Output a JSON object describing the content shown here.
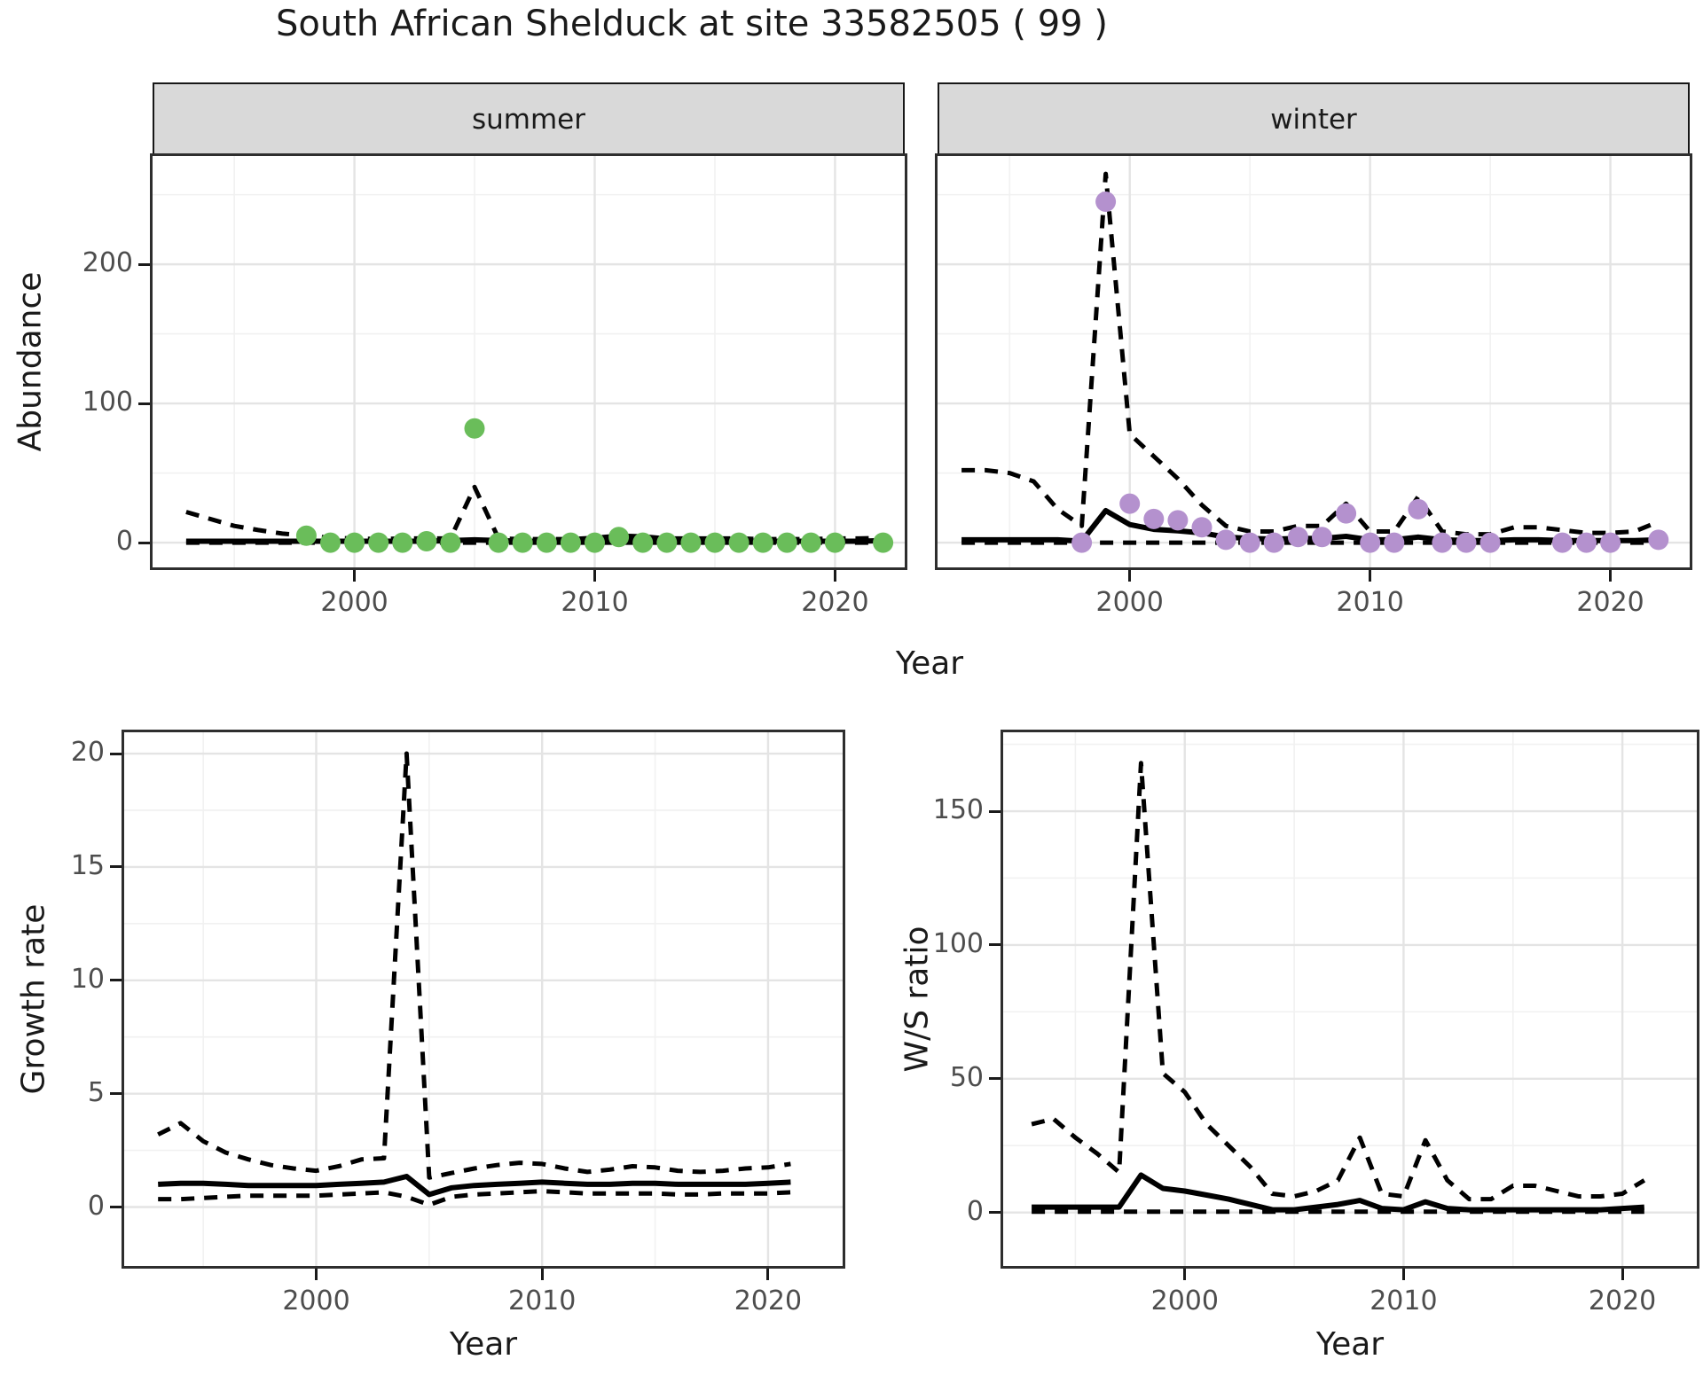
{
  "title": "South African Shelduck at site 33582505 ( 99 )",
  "axes": {
    "top": {
      "ylabel": "Abundance",
      "xlabel": "Year",
      "facets": [
        "summer",
        "winter"
      ]
    },
    "bottom_left": {
      "ylabel": "Growth rate",
      "xlabel": "Year"
    },
    "bottom_right": {
      "ylabel": "W/S ratio",
      "xlabel": "Year"
    }
  },
  "colors": {
    "point_summer": "#6abd5a",
    "point_winter": "#b491ce",
    "line": "#000000",
    "strip_bg": "#d9d9d9",
    "grid_major": "#e4e4e4",
    "grid_minor": "#f1f1f1",
    "axis_text": "#4d4d4d",
    "text": "#1a1a1a",
    "panel_border": "#2e2e2e"
  },
  "chart_data": [
    {
      "id": "abundance-summer",
      "type": "line",
      "facet": "summer",
      "ylabel": "Abundance",
      "xlabel": "Year",
      "xlim": [
        1991.6,
        2022.9
      ],
      "ylim": [
        -17.8,
        277.8
      ],
      "xticks": [
        2000,
        2010,
        2020
      ],
      "xminor": [
        1995,
        2005,
        2015
      ],
      "yticks": [
        0,
        100,
        200
      ],
      "yminor": [
        50,
        150,
        250
      ],
      "show_y_tick_labels": true,
      "x": [
        1993,
        1994,
        1995,
        1996,
        1997,
        1998,
        1999,
        2000,
        2001,
        2002,
        2003,
        2004,
        2005,
        2006,
        2007,
        2008,
        2009,
        2010,
        2011,
        2012,
        2013,
        2014,
        2015,
        2016,
        2017,
        2018,
        2019,
        2020,
        2021,
        2022
      ],
      "series": [
        {
          "name": "upper-ci",
          "style": "dashed",
          "y": [
            22,
            17,
            12,
            9,
            6.5,
            5,
            3.5,
            3,
            2.5,
            3,
            3,
            3,
            40,
            3,
            2.5,
            2.5,
            2.5,
            3.5,
            5,
            4.5,
            3,
            3,
            3,
            3,
            2.5,
            2.5,
            2.5,
            3,
            3,
            3.5
          ]
        },
        {
          "name": "lower-ci",
          "style": "dashed",
          "y": [
            0,
            0,
            0,
            0,
            0,
            0,
            0,
            0,
            0,
            0,
            0,
            0,
            0,
            0,
            0,
            0,
            0,
            0,
            0,
            0,
            0,
            0,
            0,
            0,
            0,
            0,
            0,
            0,
            0,
            0
          ]
        },
        {
          "name": "fit",
          "style": "solid",
          "y": [
            1,
            1,
            1,
            1,
            1,
            1,
            1,
            1,
            1,
            1,
            1,
            1.5,
            2,
            1.5,
            1,
            1,
            1,
            1.5,
            2.5,
            2,
            1.5,
            1,
            1,
            1,
            1,
            1,
            1,
            1,
            1,
            1.5
          ]
        }
      ],
      "points": {
        "color_key": "point_summer",
        "x": [
          1998,
          1999,
          2000,
          2001,
          2002,
          2003,
          2004,
          2005,
          2006,
          2007,
          2008,
          2009,
          2010,
          2011,
          2012,
          2013,
          2014,
          2015,
          2016,
          2017,
          2018,
          2019,
          2020,
          2022
        ],
        "y": [
          5,
          0,
          0,
          0,
          0,
          1,
          0,
          82,
          0,
          0,
          0,
          0,
          0,
          4,
          0,
          0,
          0,
          0,
          0,
          0,
          0,
          0,
          0,
          0
        ]
      }
    },
    {
      "id": "abundance-winter",
      "type": "line",
      "facet": "winter",
      "ylabel": "Abundance",
      "xlabel": "Year",
      "xlim": [
        1992.0,
        2023.3
      ],
      "ylim": [
        -17.8,
        277.8
      ],
      "xticks": [
        2000,
        2010,
        2020
      ],
      "xminor": [
        1995,
        2005,
        2015
      ],
      "yticks": [
        0,
        100,
        200
      ],
      "yminor": [
        50,
        150,
        250
      ],
      "show_y_tick_labels": false,
      "x": [
        1993,
        1994,
        1995,
        1996,
        1997,
        1998,
        1999,
        2000,
        2001,
        2002,
        2003,
        2004,
        2005,
        2006,
        2007,
        2008,
        2009,
        2010,
        2011,
        2012,
        2013,
        2014,
        2015,
        2016,
        2017,
        2018,
        2019,
        2020,
        2021,
        2022
      ],
      "series": [
        {
          "name": "upper-ci",
          "style": "dashed",
          "y": [
            52,
            52,
            50,
            44,
            24,
            12,
            265,
            78,
            62,
            46,
            27,
            12,
            8,
            8,
            12,
            12,
            28,
            8,
            8,
            33,
            8,
            6,
            6,
            11,
            11,
            9,
            7,
            7,
            8,
            15
          ]
        },
        {
          "name": "lower-ci",
          "style": "dashed",
          "y": [
            0,
            0,
            0,
            0,
            0,
            0,
            0,
            0,
            0,
            0,
            0,
            0,
            0,
            0,
            0,
            0,
            0,
            0,
            0,
            0,
            0,
            0,
            0,
            0,
            0,
            0,
            0,
            0,
            0,
            0
          ]
        },
        {
          "name": "fit",
          "style": "solid",
          "y": [
            2,
            2,
            2,
            2,
            2,
            1,
            23,
            13,
            9.5,
            8.5,
            7,
            4,
            3,
            2.5,
            3,
            3,
            4.5,
            2,
            2,
            4,
            2,
            1.5,
            1.5,
            2,
            2,
            1.5,
            1.5,
            1.5,
            1.5,
            2
          ]
        }
      ],
      "points": {
        "color_key": "point_winter",
        "x": [
          1998,
          1999,
          2000,
          2001,
          2002,
          2003,
          2004,
          2005,
          2006,
          2007,
          2008,
          2009,
          2010,
          2011,
          2012,
          2013,
          2014,
          2015,
          2018,
          2019,
          2020,
          2022
        ],
        "y": [
          0,
          245,
          28,
          17,
          16,
          11,
          2,
          0,
          0,
          4,
          4,
          21,
          0,
          0,
          24,
          0,
          0,
          0,
          0,
          0,
          0,
          2
        ]
      }
    },
    {
      "id": "growth-rate",
      "type": "line",
      "facet": null,
      "ylabel": "Growth rate",
      "xlabel": "Year",
      "xlim": [
        1991.5,
        2023.3
      ],
      "ylim": [
        -2.6,
        20.94
      ],
      "xticks": [
        2000,
        2010,
        2020
      ],
      "xminor": [
        1995,
        2005,
        2015
      ],
      "yticks": [
        0,
        5,
        10,
        15,
        20
      ],
      "yminor": [
        2.5,
        7.5,
        12.5,
        17.5
      ],
      "show_y_tick_labels": true,
      "x": [
        1993,
        1994,
        1995,
        1996,
        1997,
        1998,
        1999,
        2000,
        2001,
        2002,
        2003,
        2004,
        2005,
        2006,
        2007,
        2008,
        2009,
        2010,
        2011,
        2012,
        2013,
        2014,
        2015,
        2016,
        2017,
        2018,
        2019,
        2020,
        2021
      ],
      "series": [
        {
          "name": "upper-ci",
          "style": "dashed",
          "y": [
            3.2,
            3.7,
            2.9,
            2.4,
            2.1,
            1.85,
            1.7,
            1.6,
            1.8,
            2.1,
            2.15,
            20,
            1.3,
            1.5,
            1.7,
            1.85,
            1.95,
            1.9,
            1.7,
            1.55,
            1.65,
            1.8,
            1.75,
            1.6,
            1.55,
            1.6,
            1.7,
            1.75,
            1.9
          ]
        },
        {
          "name": "lower-ci",
          "style": "dashed",
          "y": [
            0.35,
            0.35,
            0.4,
            0.45,
            0.5,
            0.5,
            0.5,
            0.5,
            0.55,
            0.6,
            0.65,
            0.45,
            0.1,
            0.45,
            0.55,
            0.6,
            0.65,
            0.7,
            0.65,
            0.6,
            0.6,
            0.6,
            0.6,
            0.55,
            0.55,
            0.6,
            0.6,
            0.6,
            0.65
          ]
        },
        {
          "name": "fit",
          "style": "solid",
          "y": [
            1.0,
            1.05,
            1.05,
            1.0,
            0.95,
            0.95,
            0.95,
            0.95,
            1.0,
            1.05,
            1.1,
            1.35,
            0.55,
            0.85,
            0.95,
            1.0,
            1.05,
            1.1,
            1.05,
            1.0,
            1.0,
            1.05,
            1.05,
            1.0,
            1.0,
            1.0,
            1.0,
            1.05,
            1.1
          ]
        }
      ],
      "points": null
    },
    {
      "id": "ws-ratio",
      "type": "line",
      "facet": null,
      "ylabel": "W/S ratio",
      "xlabel": "Year",
      "xlim": [
        1991.7,
        2023.4
      ],
      "ylim": [
        -20,
        179.5
      ],
      "xticks": [
        2000,
        2010,
        2020
      ],
      "xminor": [
        1995,
        2005,
        2015
      ],
      "yticks": [
        0,
        50,
        100,
        150
      ],
      "yminor": [
        25,
        75,
        125,
        175
      ],
      "show_y_tick_labels": true,
      "x": [
        1993,
        1994,
        1995,
        1996,
        1997,
        1998,
        1999,
        2000,
        2001,
        2002,
        2003,
        2004,
        2005,
        2006,
        2007,
        2008,
        2009,
        2010,
        2011,
        2012,
        2013,
        2014,
        2015,
        2016,
        2017,
        2018,
        2019,
        2020,
        2021
      ],
      "series": [
        {
          "name": "upper-ci",
          "style": "dashed",
          "y": [
            33,
            35,
            28,
            22,
            15,
            168,
            52,
            45,
            33,
            25,
            17,
            7,
            6,
            8,
            12,
            28,
            7,
            6,
            27,
            12,
            5,
            5,
            10,
            10,
            8,
            6,
            6,
            7,
            12
          ]
        },
        {
          "name": "lower-ci",
          "style": "dashed",
          "y": [
            0.3,
            0.3,
            0.3,
            0.3,
            0.3,
            0.3,
            0.3,
            0.3,
            0.3,
            0.3,
            0.3,
            0.3,
            0.3,
            0.3,
            0.3,
            0.3,
            0.3,
            0.3,
            0.3,
            0.3,
            0.3,
            0.3,
            0.3,
            0.3,
            0.3,
            0.3,
            0.3,
            0.3,
            0.3
          ]
        },
        {
          "name": "fit",
          "style": "solid",
          "y": [
            2,
            2,
            2,
            2,
            2,
            14,
            9,
            8,
            6.5,
            5,
            3,
            1,
            1,
            2,
            3,
            4.5,
            1.5,
            1,
            4,
            1.5,
            1,
            1,
            1,
            1,
            1,
            1,
            1,
            1.5,
            2
          ]
        }
      ],
      "points": null
    }
  ],
  "layout_note": ""
}
